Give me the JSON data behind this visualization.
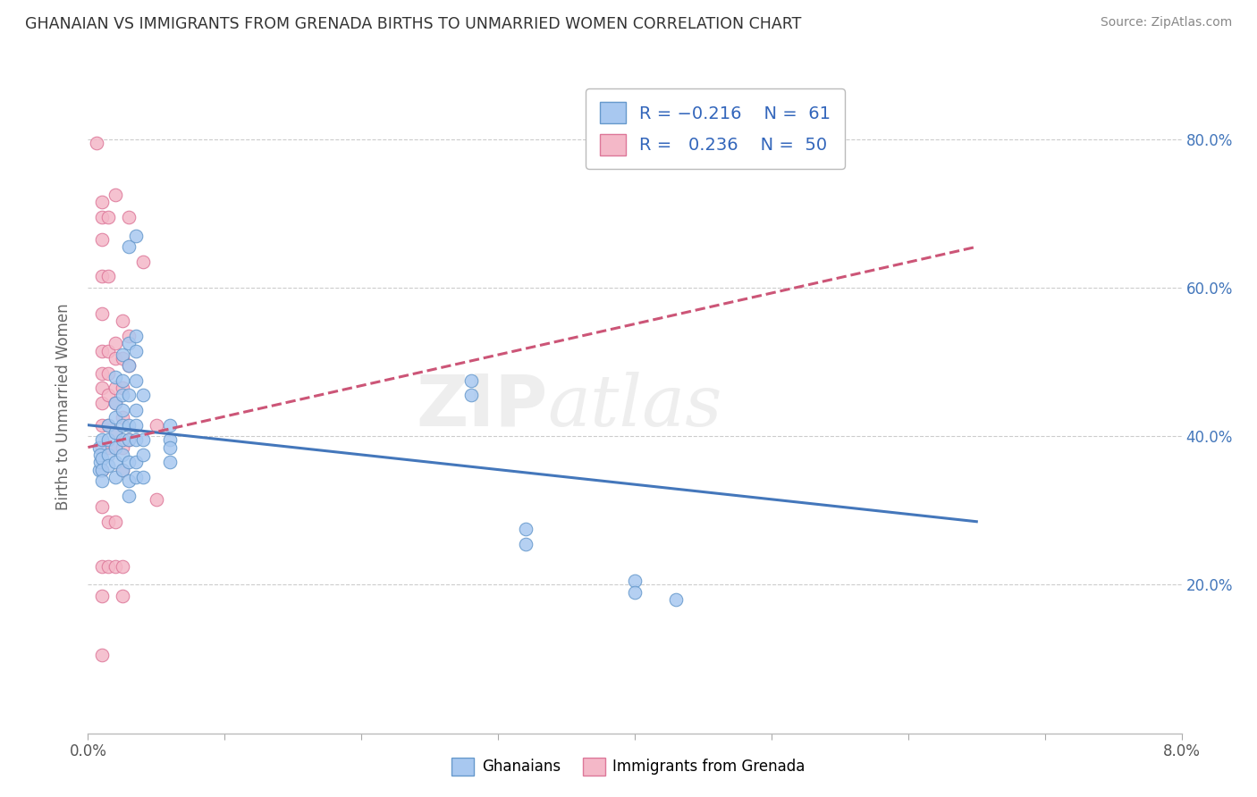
{
  "title": "GHANAIAN VS IMMIGRANTS FROM GRENADA BIRTHS TO UNMARRIED WOMEN CORRELATION CHART",
  "source": "Source: ZipAtlas.com",
  "ylabel": "Births to Unmarried Women",
  "legend_label_blue": "Ghanaians",
  "legend_label_pink": "Immigrants from Grenada",
  "blue_color": "#A8C8F0",
  "pink_color": "#F4B8C8",
  "blue_edge_color": "#6699CC",
  "pink_edge_color": "#DD7799",
  "blue_line_color": "#4477BB",
  "pink_line_color": "#CC5577",
  "watermark": "ZIPatlas",
  "blue_scatter": [
    [
      0.0008,
      0.385
    ],
    [
      0.0008,
      0.355
    ],
    [
      0.0009,
      0.365
    ],
    [
      0.0009,
      0.375
    ],
    [
      0.001,
      0.395
    ],
    [
      0.001,
      0.37
    ],
    [
      0.001,
      0.355
    ],
    [
      0.001,
      0.34
    ],
    [
      0.0015,
      0.415
    ],
    [
      0.0015,
      0.395
    ],
    [
      0.0015,
      0.375
    ],
    [
      0.0015,
      0.36
    ],
    [
      0.002,
      0.48
    ],
    [
      0.002,
      0.445
    ],
    [
      0.002,
      0.425
    ],
    [
      0.002,
      0.405
    ],
    [
      0.002,
      0.385
    ],
    [
      0.002,
      0.365
    ],
    [
      0.002,
      0.345
    ],
    [
      0.0025,
      0.51
    ],
    [
      0.0025,
      0.475
    ],
    [
      0.0025,
      0.455
    ],
    [
      0.0025,
      0.435
    ],
    [
      0.0025,
      0.415
    ],
    [
      0.0025,
      0.395
    ],
    [
      0.0025,
      0.375
    ],
    [
      0.0025,
      0.355
    ],
    [
      0.003,
      0.655
    ],
    [
      0.003,
      0.525
    ],
    [
      0.003,
      0.495
    ],
    [
      0.003,
      0.455
    ],
    [
      0.003,
      0.415
    ],
    [
      0.003,
      0.395
    ],
    [
      0.003,
      0.365
    ],
    [
      0.003,
      0.34
    ],
    [
      0.003,
      0.32
    ],
    [
      0.0035,
      0.67
    ],
    [
      0.0035,
      0.535
    ],
    [
      0.0035,
      0.515
    ],
    [
      0.0035,
      0.475
    ],
    [
      0.0035,
      0.435
    ],
    [
      0.0035,
      0.415
    ],
    [
      0.0035,
      0.395
    ],
    [
      0.0035,
      0.365
    ],
    [
      0.0035,
      0.345
    ],
    [
      0.004,
      0.455
    ],
    [
      0.004,
      0.395
    ],
    [
      0.004,
      0.375
    ],
    [
      0.004,
      0.345
    ],
    [
      0.006,
      0.415
    ],
    [
      0.006,
      0.395
    ],
    [
      0.006,
      0.385
    ],
    [
      0.006,
      0.365
    ],
    [
      0.028,
      0.475
    ],
    [
      0.028,
      0.455
    ],
    [
      0.032,
      0.275
    ],
    [
      0.032,
      0.255
    ],
    [
      0.04,
      0.205
    ],
    [
      0.04,
      0.19
    ],
    [
      0.043,
      0.18
    ]
  ],
  "pink_scatter": [
    [
      0.0006,
      0.795
    ],
    [
      0.001,
      0.715
    ],
    [
      0.001,
      0.695
    ],
    [
      0.001,
      0.665
    ],
    [
      0.001,
      0.615
    ],
    [
      0.001,
      0.565
    ],
    [
      0.001,
      0.515
    ],
    [
      0.001,
      0.485
    ],
    [
      0.001,
      0.465
    ],
    [
      0.001,
      0.445
    ],
    [
      0.001,
      0.415
    ],
    [
      0.001,
      0.385
    ],
    [
      0.001,
      0.355
    ],
    [
      0.001,
      0.305
    ],
    [
      0.001,
      0.225
    ],
    [
      0.001,
      0.185
    ],
    [
      0.001,
      0.105
    ],
    [
      0.0015,
      0.695
    ],
    [
      0.0015,
      0.615
    ],
    [
      0.0015,
      0.515
    ],
    [
      0.0015,
      0.485
    ],
    [
      0.0015,
      0.455
    ],
    [
      0.0015,
      0.415
    ],
    [
      0.0015,
      0.385
    ],
    [
      0.0015,
      0.285
    ],
    [
      0.0015,
      0.225
    ],
    [
      0.002,
      0.725
    ],
    [
      0.002,
      0.525
    ],
    [
      0.002,
      0.505
    ],
    [
      0.002,
      0.465
    ],
    [
      0.002,
      0.445
    ],
    [
      0.002,
      0.405
    ],
    [
      0.002,
      0.385
    ],
    [
      0.002,
      0.285
    ],
    [
      0.002,
      0.225
    ],
    [
      0.0025,
      0.555
    ],
    [
      0.0025,
      0.505
    ],
    [
      0.0025,
      0.465
    ],
    [
      0.0025,
      0.425
    ],
    [
      0.0025,
      0.385
    ],
    [
      0.0025,
      0.355
    ],
    [
      0.0025,
      0.225
    ],
    [
      0.0025,
      0.185
    ],
    [
      0.003,
      0.695
    ],
    [
      0.003,
      0.535
    ],
    [
      0.003,
      0.495
    ],
    [
      0.003,
      0.395
    ],
    [
      0.004,
      0.635
    ],
    [
      0.005,
      0.415
    ],
    [
      0.005,
      0.315
    ]
  ],
  "blue_trend": {
    "x_start": 0.0,
    "x_end": 0.065,
    "y_start": 0.415,
    "y_end": 0.285
  },
  "pink_trend": {
    "x_start": 0.0,
    "x_end": 0.065,
    "y_start": 0.385,
    "y_end": 0.655
  },
  "xlim": [
    0.0,
    0.065
  ],
  "ylim": [
    0.0,
    0.88
  ],
  "x_ticks_count": 9,
  "y_ticks": [
    0.2,
    0.4,
    0.6,
    0.8
  ],
  "background_color": "#FFFFFF",
  "grid_color": "#CCCCCC"
}
